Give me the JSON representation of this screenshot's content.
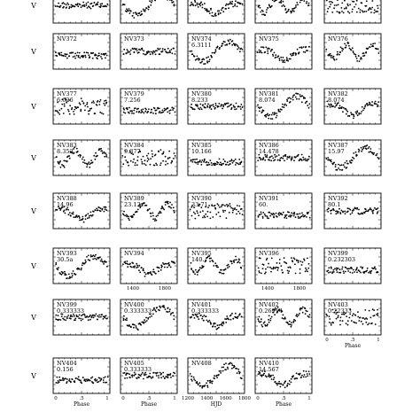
{
  "chart_data": {
    "type": "scatter",
    "rows": [
      {
        "ylabel": "V",
        "panels": [
          {
            "name": "",
            "period": "",
            "xaxis": "phase"
          },
          {
            "name": "",
            "period": "",
            "xaxis": "phase"
          },
          {
            "name": "",
            "period": "",
            "xaxis": "phase"
          },
          {
            "name": "",
            "period": "",
            "xaxis": "phase"
          },
          {
            "name": "",
            "period": "",
            "xaxis": "phase"
          }
        ]
      },
      {
        "ylabel": "V",
        "panels": [
          {
            "name": "NV372",
            "period": "",
            "xaxis": "phase"
          },
          {
            "name": "NV373",
            "period": "",
            "xaxis": "phase"
          },
          {
            "name": "NV374",
            "period": "6.3111",
            "xaxis": "phase"
          },
          {
            "name": "NV375",
            "period": "",
            "xaxis": "phase"
          },
          {
            "name": "NV376",
            "period": "",
            "xaxis": "phase"
          }
        ]
      },
      {
        "ylabel": "V",
        "panels": [
          {
            "name": "NV377",
            "period": "6.626",
            "xaxis": "phase"
          },
          {
            "name": "NV379",
            "period": "7.256",
            "xaxis": "phase"
          },
          {
            "name": "NV380",
            "period": "8.233",
            "xaxis": "phase"
          },
          {
            "name": "NV381",
            "period": "8.074",
            "xaxis": "phase"
          },
          {
            "name": "NV382",
            "period": "8.074",
            "xaxis": "phase"
          }
        ]
      },
      {
        "ylabel": "V",
        "panels": [
          {
            "name": "NV383",
            "period": "8.352",
            "xaxis": "phase"
          },
          {
            "name": "NV384",
            "period": "9.377",
            "xaxis": "phase"
          },
          {
            "name": "NV385",
            "period": "10.166",
            "xaxis": "phase"
          },
          {
            "name": "NV386",
            "period": "14.478",
            "xaxis": "phase"
          },
          {
            "name": "NV387",
            "period": "15.97",
            "xaxis": "phase"
          }
        ]
      },
      {
        "ylabel": "V",
        "panels": [
          {
            "name": "NV388",
            "period": "14.96",
            "xaxis": "phase"
          },
          {
            "name": "NV389",
            "period": "23.12",
            "xaxis": "phase"
          },
          {
            "name": "NV390",
            "period": "33.71",
            "xaxis": "phase"
          },
          {
            "name": "NV391",
            "period": "60.",
            "xaxis": "phase"
          },
          {
            "name": "NV392",
            "period": "80.1",
            "xaxis": "phase"
          }
        ]
      },
      {
        "ylabel": "V",
        "panels": [
          {
            "name": "NV393",
            "period": "30.5a",
            "xaxis": "phase"
          },
          {
            "name": "NV394",
            "period": "",
            "xaxis": "hjd",
            "ticks": [
              "1400",
              "1800"
            ]
          },
          {
            "name": "NV395",
            "period": "140.",
            "xaxis": "phase"
          },
          {
            "name": "NV396",
            "period": "",
            "xaxis": "hjd",
            "ticks": [
              "1400",
              "1800"
            ]
          },
          {
            "name": "NV399",
            "period": "0.232303",
            "xaxis": "phase"
          }
        ]
      },
      {
        "ylabel": "V",
        "panels": [
          {
            "name": "NV399",
            "period": "0.333333",
            "xaxis": "phase"
          },
          {
            "name": "NV400",
            "period": "0.333333",
            "xaxis": "phase"
          },
          {
            "name": "NV401",
            "period": "0.333333",
            "xaxis": "phase"
          },
          {
            "name": "NV402",
            "period": "0.26914",
            "xaxis": "phase"
          },
          {
            "name": "NV403",
            "period": "0.22333",
            "xaxis": "phase"
          }
        ]
      },
      {
        "ylabel": "V",
        "panels": [
          {
            "name": "NV404",
            "period": "0.156",
            "xaxis": "phase"
          },
          {
            "name": "NV405",
            "period": "0.333333",
            "xaxis": "phase"
          },
          {
            "name": "NV408",
            "period": "",
            "xaxis": "hjd",
            "ticks": [
              "1200",
              "1400",
              "1600",
              "1800"
            ]
          },
          {
            "name": "NV410",
            "period": "14.567",
            "xaxis": "phase"
          }
        ]
      }
    ],
    "phase_ticks": [
      "0",
      ".5",
      "1"
    ],
    "xlabels": {
      "phase": "Phase",
      "hjd": "HJD"
    }
  }
}
